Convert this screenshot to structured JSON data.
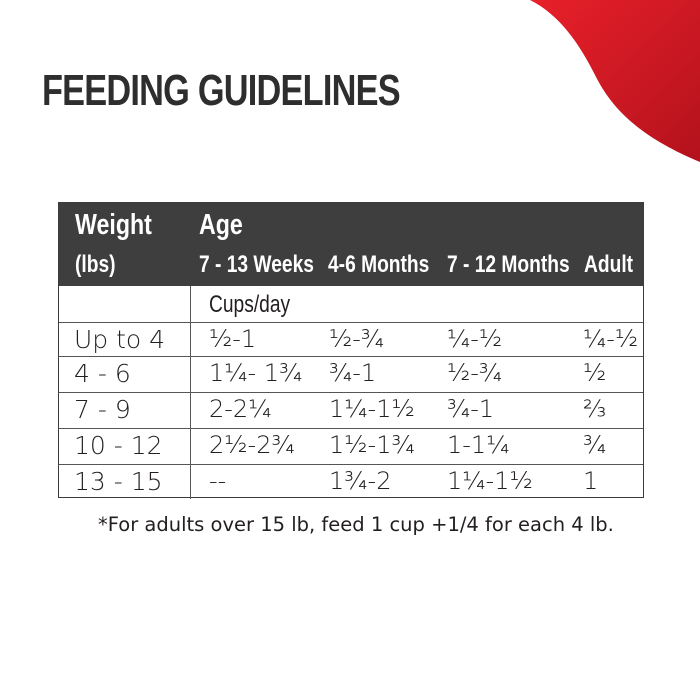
{
  "title": "FEEDING GUIDELINES",
  "accent_color": "#e31b23",
  "table": {
    "header": {
      "weight": "Weight",
      "weight_unit": "(lbs)",
      "age": "Age",
      "columns": [
        "7 - 13 Weeks",
        "4-6 Months",
        "7 - 12 Months",
        "Adult"
      ]
    },
    "unit_row": "Cups/day",
    "rows": [
      {
        "weight": "Up to 4",
        "values": [
          "½-1",
          "½-¾",
          "¼-½",
          "¼-½"
        ]
      },
      {
        "weight": "4 - 6",
        "values": [
          "1¼- 1¾",
          "¾-1",
          "½-¾",
          "½"
        ]
      },
      {
        "weight": "7 - 9",
        "values": [
          "2-2¼",
          "1¼-1½",
          "¾-1",
          "⅔"
        ]
      },
      {
        "weight": "10 - 12",
        "values": [
          "2½-2¾",
          "1½-1¾",
          "1-1¼",
          "¾"
        ]
      },
      {
        "weight": "13 - 15",
        "values": [
          "--",
          "1¾-2",
          "1¼-1½",
          "1"
        ]
      }
    ]
  },
  "footnote": "*For adults over 15 lb, feed 1 cup +1/4 for each 4 lb."
}
